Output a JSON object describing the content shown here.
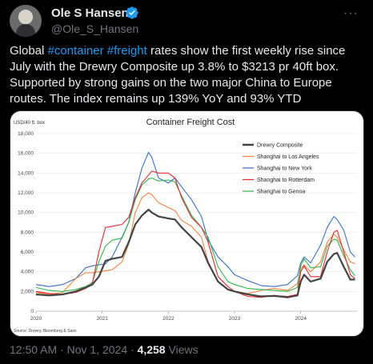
{
  "header": {
    "name": "Ole S Hansen",
    "handle": "@Ole_S_Hansen",
    "more_label": "···"
  },
  "tweet": {
    "prefix": "Global ",
    "hashtag1": "#container",
    "space": " ",
    "hashtag2": "#freight",
    "body": " rates show the first weekly rise since July with the Drewry Composite up 3.8% to $3213 pr 40ft box. Supported by strong gains on the two major China to Europe routes.  The index remains up 139% YoY and 93% YTD"
  },
  "meta": {
    "time": "12:50 AM",
    "sep1": " · ",
    "date": "Nov 1, 2024",
    "sep2": " · ",
    "views_count": "4,258",
    "views_label": " Views"
  },
  "chart_data": {
    "type": "line",
    "title": "Container Freight Cost",
    "ylabel": "USD/40 ft. box",
    "source": "Source: Drewry, Bloomberg & Saxo",
    "xlim": [
      2020,
      2024.85
    ],
    "ylim": [
      0,
      18000
    ],
    "x_ticks": [
      2020,
      2021,
      2022,
      2023,
      2024
    ],
    "x_tick_labels": [
      "2020",
      "2021",
      "2022",
      "2023",
      "2024"
    ],
    "y_ticks": [
      0,
      2000,
      4000,
      6000,
      8000,
      10000,
      12000,
      14000,
      16000,
      18000
    ],
    "y_tick_labels": [
      "0",
      "2,000",
      "4,000",
      "6,000",
      "8,000",
      "10,000",
      "12,000",
      "14,000",
      "16,000",
      "18,000"
    ],
    "legend_position": "top-right",
    "series": [
      {
        "name": "Drewry Composite",
        "color": "#444444",
        "points": [
          [
            2020.0,
            1700
          ],
          [
            2020.2,
            1600
          ],
          [
            2020.4,
            1700
          ],
          [
            2020.6,
            2000
          ],
          [
            2020.75,
            2400
          ],
          [
            2020.85,
            2700
          ],
          [
            2020.95,
            3500
          ],
          [
            2021.05,
            5100
          ],
          [
            2021.15,
            5300
          ],
          [
            2021.3,
            5500
          ],
          [
            2021.4,
            7000
          ],
          [
            2021.5,
            8800
          ],
          [
            2021.6,
            9700
          ],
          [
            2021.7,
            10300
          ],
          [
            2021.75,
            10000
          ],
          [
            2021.85,
            9600
          ],
          [
            2022.0,
            9400
          ],
          [
            2022.1,
            9300
          ],
          [
            2022.2,
            8500
          ],
          [
            2022.35,
            7500
          ],
          [
            2022.5,
            6500
          ],
          [
            2022.6,
            4900
          ],
          [
            2022.75,
            3000
          ],
          [
            2022.9,
            2200
          ],
          [
            2023.0,
            2000
          ],
          [
            2023.2,
            1700
          ],
          [
            2023.4,
            1500
          ],
          [
            2023.6,
            1550
          ],
          [
            2023.8,
            1400
          ],
          [
            2023.95,
            1600
          ],
          [
            2024.0,
            3000
          ],
          [
            2024.05,
            3700
          ],
          [
            2024.15,
            3000
          ],
          [
            2024.3,
            3300
          ],
          [
            2024.4,
            5000
          ],
          [
            2024.5,
            5800
          ],
          [
            2024.55,
            5900
          ],
          [
            2024.65,
            4500
          ],
          [
            2024.75,
            3200
          ],
          [
            2024.82,
            3213
          ]
        ]
      },
      {
        "name": "Shanghai to Los Angeles",
        "color": "#f2843c",
        "points": [
          [
            2020.0,
            1900
          ],
          [
            2020.2,
            1700
          ],
          [
            2020.4,
            1900
          ],
          [
            2020.6,
            3300
          ],
          [
            2020.75,
            3900
          ],
          [
            2020.85,
            3900
          ],
          [
            2020.95,
            4000
          ],
          [
            2021.05,
            4100
          ],
          [
            2021.15,
            4200
          ],
          [
            2021.3,
            5000
          ],
          [
            2021.4,
            6800
          ],
          [
            2021.5,
            10000
          ],
          [
            2021.6,
            11500
          ],
          [
            2021.7,
            12000
          ],
          [
            2021.75,
            11800
          ],
          [
            2021.85,
            11000
          ],
          [
            2022.0,
            10500
          ],
          [
            2022.1,
            10200
          ],
          [
            2022.2,
            9200
          ],
          [
            2022.35,
            8600
          ],
          [
            2022.5,
            7500
          ],
          [
            2022.6,
            5000
          ],
          [
            2022.75,
            3000
          ],
          [
            2022.9,
            2200
          ],
          [
            2023.0,
            2000
          ],
          [
            2023.2,
            1800
          ],
          [
            2023.4,
            2100
          ],
          [
            2023.6,
            2300
          ],
          [
            2023.8,
            2100
          ],
          [
            2023.95,
            2800
          ],
          [
            2024.0,
            4300
          ],
          [
            2024.05,
            4700
          ],
          [
            2024.15,
            4000
          ],
          [
            2024.3,
            5000
          ],
          [
            2024.4,
            7000
          ],
          [
            2024.5,
            7800
          ],
          [
            2024.55,
            7500
          ],
          [
            2024.65,
            6200
          ],
          [
            2024.75,
            5000
          ],
          [
            2024.82,
            4800
          ]
        ]
      },
      {
        "name": "Shanghai to New York",
        "color": "#3a6fc4",
        "points": [
          [
            2020.0,
            2700
          ],
          [
            2020.2,
            2500
          ],
          [
            2020.4,
            2700
          ],
          [
            2020.6,
            3300
          ],
          [
            2020.75,
            4400
          ],
          [
            2020.85,
            4600
          ],
          [
            2020.95,
            4700
          ],
          [
            2021.05,
            4800
          ],
          [
            2021.15,
            5500
          ],
          [
            2021.3,
            7500
          ],
          [
            2021.4,
            9000
          ],
          [
            2021.5,
            12000
          ],
          [
            2021.6,
            14500
          ],
          [
            2021.7,
            16100
          ],
          [
            2021.75,
            15600
          ],
          [
            2021.85,
            13500
          ],
          [
            2022.0,
            13000
          ],
          [
            2022.1,
            13500
          ],
          [
            2022.2,
            12600
          ],
          [
            2022.35,
            11300
          ],
          [
            2022.5,
            9600
          ],
          [
            2022.6,
            7200
          ],
          [
            2022.75,
            5500
          ],
          [
            2022.9,
            4500
          ],
          [
            2023.0,
            3700
          ],
          [
            2023.2,
            3100
          ],
          [
            2023.4,
            2600
          ],
          [
            2023.6,
            2500
          ],
          [
            2023.8,
            2700
          ],
          [
            2023.95,
            3600
          ],
          [
            2024.0,
            4900
          ],
          [
            2024.05,
            5500
          ],
          [
            2024.15,
            4900
          ],
          [
            2024.3,
            6700
          ],
          [
            2024.4,
            8500
          ],
          [
            2024.5,
            9600
          ],
          [
            2024.55,
            9300
          ],
          [
            2024.65,
            8200
          ],
          [
            2024.75,
            6000
          ],
          [
            2024.82,
            5500
          ]
        ]
      },
      {
        "name": "Shanghai to Rotterdam",
        "color": "#e8262f",
        "points": [
          [
            2020.0,
            2000
          ],
          [
            2020.2,
            1800
          ],
          [
            2020.4,
            1700
          ],
          [
            2020.6,
            1900
          ],
          [
            2020.75,
            2300
          ],
          [
            2020.85,
            2800
          ],
          [
            2020.95,
            6000
          ],
          [
            2021.05,
            8500
          ],
          [
            2021.15,
            8600
          ],
          [
            2021.3,
            8800
          ],
          [
            2021.4,
            9500
          ],
          [
            2021.5,
            11500
          ],
          [
            2021.6,
            13000
          ],
          [
            2021.7,
            13800
          ],
          [
            2021.75,
            14200
          ],
          [
            2021.85,
            14000
          ],
          [
            2022.0,
            14000
          ],
          [
            2022.1,
            13500
          ],
          [
            2022.2,
            11500
          ],
          [
            2022.35,
            9500
          ],
          [
            2022.5,
            8500
          ],
          [
            2022.6,
            7000
          ],
          [
            2022.75,
            3500
          ],
          [
            2022.9,
            2500
          ],
          [
            2023.0,
            2000
          ],
          [
            2023.2,
            1500
          ],
          [
            2023.4,
            1400
          ],
          [
            2023.6,
            1600
          ],
          [
            2023.8,
            1500
          ],
          [
            2023.95,
            1700
          ],
          [
            2024.0,
            4000
          ],
          [
            2024.05,
            4600
          ],
          [
            2024.15,
            3500
          ],
          [
            2024.3,
            3500
          ],
          [
            2024.4,
            6000
          ],
          [
            2024.5,
            8000
          ],
          [
            2024.55,
            8200
          ],
          [
            2024.65,
            6000
          ],
          [
            2024.75,
            3700
          ],
          [
            2024.82,
            3300
          ]
        ]
      },
      {
        "name": "Shanghai to Genoa",
        "color": "#33b24b",
        "points": [
          [
            2020.0,
            2400
          ],
          [
            2020.2,
            2100
          ],
          [
            2020.4,
            2000
          ],
          [
            2020.6,
            2200
          ],
          [
            2020.75,
            2500
          ],
          [
            2020.85,
            2900
          ],
          [
            2020.95,
            5000
          ],
          [
            2021.05,
            6600
          ],
          [
            2021.15,
            7200
          ],
          [
            2021.3,
            7400
          ],
          [
            2021.4,
            9000
          ],
          [
            2021.5,
            11300
          ],
          [
            2021.6,
            12800
          ],
          [
            2021.7,
            13400
          ],
          [
            2021.75,
            13500
          ],
          [
            2021.85,
            13200
          ],
          [
            2022.0,
            13300
          ],
          [
            2022.1,
            13100
          ],
          [
            2022.2,
            11700
          ],
          [
            2022.35,
            9700
          ],
          [
            2022.5,
            8500
          ],
          [
            2022.6,
            7500
          ],
          [
            2022.75,
            4500
          ],
          [
            2022.9,
            3000
          ],
          [
            2023.0,
            2700
          ],
          [
            2023.2,
            2300
          ],
          [
            2023.4,
            2200
          ],
          [
            2023.6,
            2100
          ],
          [
            2023.8,
            2000
          ],
          [
            2023.95,
            2400
          ],
          [
            2024.0,
            4600
          ],
          [
            2024.05,
            5300
          ],
          [
            2024.15,
            4400
          ],
          [
            2024.3,
            4500
          ],
          [
            2024.4,
            6600
          ],
          [
            2024.5,
            7300
          ],
          [
            2024.55,
            7200
          ],
          [
            2024.65,
            5600
          ],
          [
            2024.75,
            4200
          ],
          [
            2024.82,
            3600
          ]
        ]
      }
    ]
  }
}
